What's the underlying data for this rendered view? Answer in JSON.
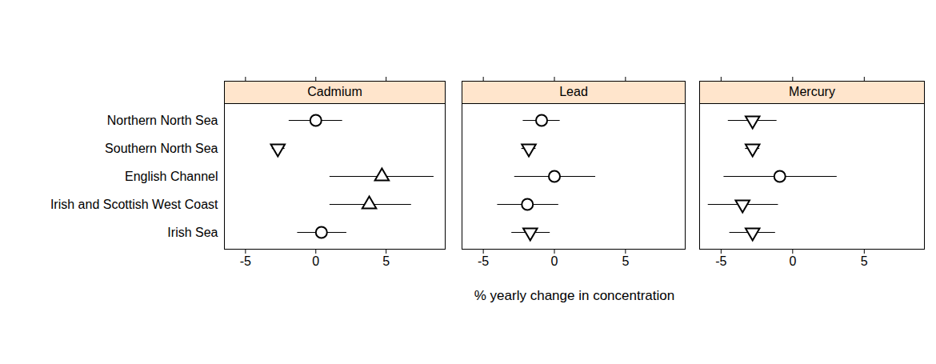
{
  "chart_data": {
    "type": "dot",
    "xlabel": "% yearly change in concentration",
    "categories": [
      "Northern North Sea",
      "Southern North Sea",
      "English Channel",
      "Irish and Scottish West Coast",
      "Irish Sea"
    ],
    "xlim": [
      -6.5,
      9.2
    ],
    "xticks": [
      -5,
      0,
      5
    ],
    "panels": [
      {
        "title": "Cadmium",
        "values": [
          0.0,
          -2.7,
          4.7,
          3.8,
          0.4
        ],
        "lower": [
          -1.9,
          -3.1,
          1.0,
          1.0,
          -1.3
        ],
        "upper": [
          1.9,
          -2.2,
          8.4,
          6.8,
          2.2
        ],
        "markers": [
          "circle",
          "triangle-down",
          "triangle-up",
          "triangle-up",
          "circle"
        ]
      },
      {
        "title": "Lead",
        "values": [
          -0.9,
          -1.8,
          0.0,
          -1.9,
          -1.7
        ],
        "lower": [
          -2.2,
          -2.3,
          -2.8,
          -4.0,
          -3.0
        ],
        "upper": [
          0.4,
          -1.3,
          2.9,
          0.3,
          -0.3
        ],
        "markers": [
          "circle",
          "triangle-down",
          "circle",
          "circle",
          "triangle-down"
        ]
      },
      {
        "title": "Mercury",
        "values": [
          -2.8,
          -2.8,
          -0.9,
          -3.5,
          -2.8
        ],
        "lower": [
          -4.5,
          -3.3,
          -4.8,
          -5.9,
          -4.4
        ],
        "upper": [
          -1.1,
          -2.3,
          3.1,
          -1.0,
          -1.2
        ],
        "markers": [
          "triangle-down",
          "triangle-down",
          "circle",
          "triangle-down",
          "triangle-down"
        ]
      }
    ]
  }
}
